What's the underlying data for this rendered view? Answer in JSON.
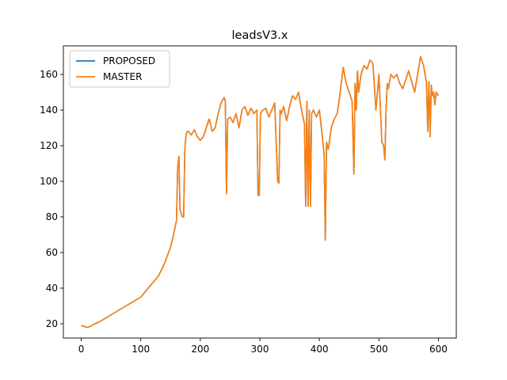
{
  "chart_data": {
    "type": "line",
    "title": "leadsV3.x",
    "xlabel": "",
    "ylabel": "",
    "xlim": [
      -30,
      630
    ],
    "ylim": [
      12,
      176
    ],
    "xticks": [
      0,
      100,
      200,
      300,
      400,
      500,
      600
    ],
    "yticks": [
      20,
      40,
      60,
      80,
      100,
      120,
      140,
      160
    ],
    "grid": false,
    "legend_position": "top-left",
    "series": [
      {
        "name": "PROPOSED",
        "color": "#1f77b4",
        "x": [
          0,
          5,
          10,
          15,
          20,
          30,
          40,
          50,
          60,
          70,
          80,
          90,
          100,
          110,
          120,
          130,
          140,
          150,
          155,
          160,
          162,
          164,
          166,
          168,
          170,
          172,
          174,
          176,
          178,
          180,
          185,
          190,
          195,
          200,
          205,
          210,
          215,
          220,
          225,
          230,
          235,
          240,
          242,
          244,
          246,
          250,
          255,
          260,
          265,
          270,
          275,
          280,
          285,
          290,
          295,
          297,
          299,
          301,
          305,
          310,
          315,
          320,
          325,
          330,
          332,
          334,
          336,
          340,
          345,
          350,
          355,
          360,
          365,
          370,
          375,
          377,
          379,
          381,
          383,
          385,
          387,
          390,
          395,
          400,
          405,
          408,
          410,
          412,
          415,
          420,
          425,
          430,
          435,
          440,
          445,
          450,
          455,
          458,
          460,
          462,
          464,
          466,
          470,
          475,
          480,
          485,
          490,
          495,
          500,
          505,
          508,
          510,
          512,
          514,
          516,
          520,
          525,
          530,
          535,
          540,
          545,
          550,
          555,
          560,
          565,
          570,
          575,
          580,
          582,
          584,
          586,
          588,
          590,
          592,
          594,
          596,
          598,
          600
        ],
        "y": [
          19,
          18.5,
          18,
          18.5,
          19.5,
          21,
          23,
          25,
          27,
          29,
          31,
          33,
          35,
          39,
          43,
          47,
          54,
          63,
          70,
          78,
          108,
          114,
          84,
          82,
          80,
          80,
          118,
          126,
          128,
          128,
          126,
          129,
          125,
          123,
          125,
          130,
          135,
          128,
          130,
          138,
          144,
          147,
          145,
          93,
          135,
          136,
          133,
          138,
          130,
          140,
          142,
          137,
          141,
          138,
          140,
          92,
          92,
          138,
          140,
          141,
          136,
          140,
          144,
          100,
          99,
          140,
          138,
          142,
          134,
          142,
          148,
          146,
          150,
          140,
          132,
          86,
          145,
          86,
          140,
          86,
          138,
          140,
          136,
          140,
          125,
          115,
          67,
          122,
          118,
          130,
          135,
          138,
          150,
          164,
          155,
          150,
          145,
          104,
          155,
          140,
          162,
          150,
          160,
          165,
          163,
          168,
          166,
          140,
          160,
          122,
          120,
          112,
          140,
          155,
          152,
          160,
          158,
          160,
          155,
          152,
          157,
          162,
          156,
          150,
          160,
          170,
          165,
          155,
          128,
          156,
          125,
          154,
          148,
          150,
          143,
          150,
          149,
          148
        ]
      },
      {
        "name": "MASTER",
        "color": "#ff7f0e",
        "x": [
          0,
          5,
          10,
          15,
          20,
          30,
          40,
          50,
          60,
          70,
          80,
          90,
          100,
          110,
          120,
          130,
          140,
          150,
          155,
          160,
          162,
          164,
          166,
          168,
          170,
          172,
          174,
          176,
          178,
          180,
          185,
          190,
          195,
          200,
          205,
          210,
          215,
          220,
          225,
          230,
          235,
          240,
          242,
          244,
          246,
          250,
          255,
          260,
          265,
          270,
          275,
          280,
          285,
          290,
          295,
          297,
          299,
          301,
          305,
          310,
          315,
          320,
          325,
          330,
          332,
          334,
          336,
          340,
          345,
          350,
          355,
          360,
          365,
          370,
          375,
          377,
          379,
          381,
          383,
          385,
          387,
          390,
          395,
          400,
          405,
          408,
          410,
          412,
          415,
          420,
          425,
          430,
          435,
          440,
          445,
          450,
          455,
          458,
          460,
          462,
          464,
          466,
          470,
          475,
          480,
          485,
          490,
          495,
          500,
          505,
          508,
          510,
          512,
          514,
          516,
          520,
          525,
          530,
          535,
          540,
          545,
          550,
          555,
          560,
          565,
          570,
          575,
          580,
          582,
          584,
          586,
          588,
          590,
          592,
          594,
          596,
          598,
          600
        ],
        "y": [
          19,
          18.5,
          18,
          18.5,
          19.5,
          21,
          23,
          25,
          27,
          29,
          31,
          33,
          35,
          39,
          43,
          47,
          54,
          63,
          70,
          78,
          108,
          114,
          84,
          82,
          80,
          80,
          118,
          126,
          128,
          128,
          126,
          129,
          125,
          123,
          125,
          130,
          135,
          128,
          130,
          138,
          144,
          147,
          145,
          93,
          135,
          136,
          133,
          138,
          130,
          140,
          142,
          137,
          141,
          138,
          140,
          92,
          92,
          138,
          140,
          141,
          136,
          140,
          144,
          100,
          99,
          140,
          138,
          142,
          134,
          142,
          148,
          146,
          150,
          140,
          132,
          86,
          145,
          86,
          140,
          86,
          138,
          140,
          136,
          140,
          125,
          115,
          67,
          122,
          118,
          130,
          135,
          138,
          150,
          164,
          155,
          150,
          145,
          104,
          155,
          140,
          162,
          150,
          160,
          165,
          163,
          168,
          166,
          140,
          160,
          122,
          120,
          112,
          140,
          155,
          152,
          160,
          158,
          160,
          155,
          152,
          157,
          162,
          156,
          150,
          160,
          170,
          165,
          155,
          128,
          156,
          125,
          154,
          148,
          150,
          143,
          150,
          149,
          148
        ]
      }
    ]
  }
}
